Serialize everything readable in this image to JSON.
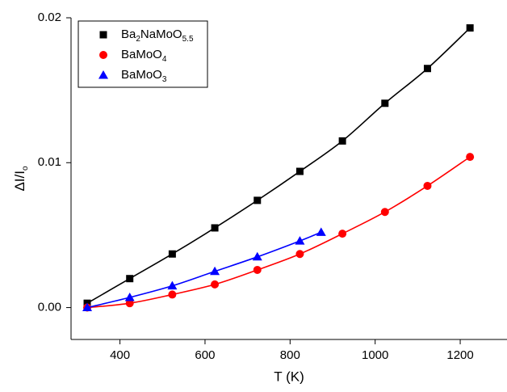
{
  "chart_data": {
    "type": "scatter",
    "xlabel": "T (K)",
    "ylabel": "ΔI/Io",
    "xlim": [
      285,
      1310
    ],
    "ylim": [
      -0.0022,
      0.02
    ],
    "xticks": [
      400,
      600,
      800,
      1000,
      1200
    ],
    "yticks": [
      {
        "value": 0,
        "label": "0.00"
      },
      {
        "value": 0.01,
        "label": "0.01"
      },
      {
        "value": 0.02,
        "label": "0.02"
      }
    ],
    "legend": "upper left",
    "series": [
      {
        "name": "Ba2NaMoO5.5",
        "color": "#000000",
        "marker": "square",
        "x": [
          323,
          423,
          523,
          623,
          723,
          823,
          923,
          1023,
          1123,
          1223
        ],
        "values": [
          0.0003,
          0.002,
          0.0037,
          0.0055,
          0.0074,
          0.0094,
          0.0115,
          0.0141,
          0.0165,
          0.0193
        ]
      },
      {
        "name": "BaMoO4",
        "color": "#ff0000",
        "marker": "circle",
        "x": [
          323,
          423,
          523,
          623,
          723,
          823,
          923,
          1023,
          1123,
          1223
        ],
        "values": [
          0.0,
          0.0003,
          0.0009,
          0.0016,
          0.0026,
          0.0037,
          0.0051,
          0.0066,
          0.0084,
          0.0104
        ]
      },
      {
        "name": "BaMoO3",
        "color": "#0000ff",
        "marker": "triangle",
        "x": [
          323,
          423,
          523,
          623,
          723,
          823,
          873
        ],
        "values": [
          0.0,
          0.0007,
          0.0015,
          0.0025,
          0.0035,
          0.0046,
          0.0052
        ]
      }
    ]
  }
}
